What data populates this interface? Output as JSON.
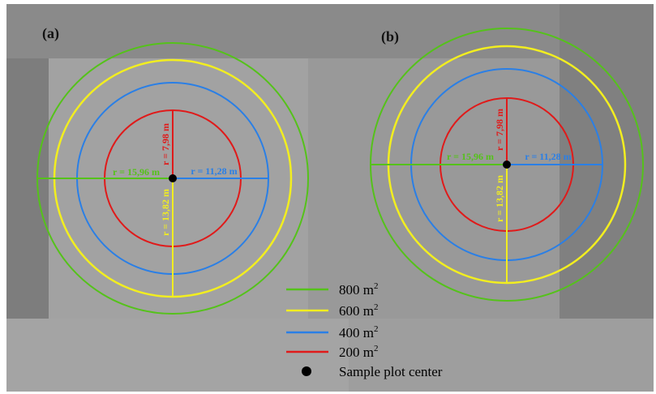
{
  "figure": {
    "colors": {
      "c800": "#55c21a",
      "c600": "#f2ee1f",
      "c400": "#2a7fe6",
      "c200": "#e01a1a",
      "center": "#000000",
      "background": "#9c9c9c",
      "background_dark": "#7f7f7f"
    },
    "panels": [
      {
        "label": "(a)",
        "radius_labels": {
          "r800": "r = 15,96 m",
          "r600": "r = 13,82 m",
          "r400": "r = 11,28 m",
          "r200": "r = 7,98 m"
        }
      },
      {
        "label": "(b)",
        "radius_labels": {
          "r800": "r = 15,96 m",
          "r600": "r = 13,82 m",
          "r400": "r = 11,28 m",
          "r200": "r = 7,98 m"
        }
      }
    ],
    "legend": [
      {
        "key": "c800",
        "value": "800 m",
        "sup": "2"
      },
      {
        "key": "c600",
        "value": "600 m",
        "sup": "2"
      },
      {
        "key": "c400",
        "value": "400 m",
        "sup": "2"
      },
      {
        "key": "c200",
        "value": "200 m",
        "sup": "2"
      },
      {
        "key": "center",
        "value": "Sample plot center",
        "sup": ""
      }
    ]
  }
}
